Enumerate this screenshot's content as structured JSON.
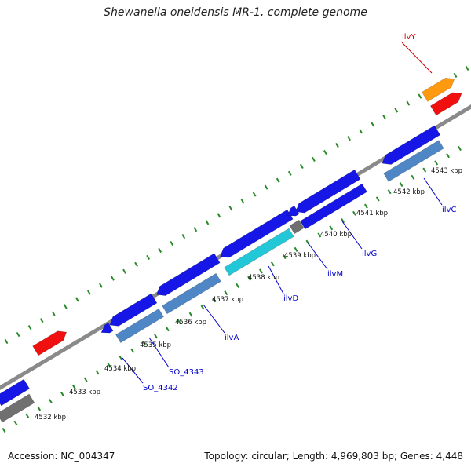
{
  "title": "Shewanella oneidensis MR-1, complete genome",
  "footer": {
    "accession": "Accession: NC_004347",
    "summary": "Topology: circular; Length: 4,969,803 bp; Genes: 4,448"
  },
  "colors": {
    "backbone": "#8a8a8a",
    "tick": "#2a8a2a",
    "label_text": "#0000cc",
    "highlight_text": "#cc0000",
    "cds_blue": "#1616e6",
    "cds_light": "#4e86c6",
    "cds_cyan": "#22c8d8",
    "cds_red": "#f01010",
    "cds_orange": "#ff9a10",
    "cds_gray": "#707070"
  },
  "scale_labels": [
    "4532 kbp",
    "4533 kbp",
    "4534 kbp",
    "4535 kbp",
    "4536 kbp",
    "4537 kbp",
    "4538 kbp",
    "4539 kbp",
    "4540 kbp",
    "4541 kbp",
    "4542 kbp",
    "4543 kbp"
  ],
  "gene_labels": [
    {
      "text": "SO_4342",
      "color": "blue"
    },
    {
      "text": "SO_4343",
      "color": "blue"
    },
    {
      "text": "ilvA",
      "color": "blue"
    },
    {
      "text": "ilvD",
      "color": "blue"
    },
    {
      "text": "ilvM",
      "color": "blue"
    },
    {
      "text": "ilvG",
      "color": "blue"
    },
    {
      "text": "ilvC",
      "color": "blue"
    },
    {
      "text": "ilvY",
      "color": "red"
    }
  ]
}
